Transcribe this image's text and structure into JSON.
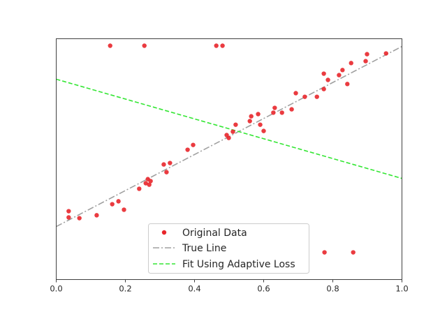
{
  "chart_data": {
    "type": "scatter",
    "title": "",
    "xlabel": "",
    "ylabel": "",
    "xlim": [
      0.0,
      1.0
    ],
    "ylim": [
      0.0,
      1.0
    ],
    "x_ticks": [
      "0.0",
      "0.2",
      "0.4",
      "0.6",
      "0.8",
      "1.0"
    ],
    "y_ticks": [],
    "grid": false,
    "legend_position": "lower center",
    "colors": {
      "points": "#e8262b",
      "true_line": "#a0a0a0",
      "fit_line": "#33e633",
      "axes": "#404040"
    },
    "series": [
      {
        "name": "Original Data",
        "kind": "scatter",
        "points": [
          [
            0.036,
            0.284
          ],
          [
            0.036,
            0.258
          ],
          [
            0.067,
            0.255
          ],
          [
            0.117,
            0.267
          ],
          [
            0.162,
            0.313
          ],
          [
            0.18,
            0.325
          ],
          [
            0.196,
            0.29
          ],
          [
            0.24,
            0.377
          ],
          [
            0.259,
            0.4
          ],
          [
            0.265,
            0.417
          ],
          [
            0.273,
            0.409
          ],
          [
            0.269,
            0.394
          ],
          [
            0.311,
            0.478
          ],
          [
            0.329,
            0.484
          ],
          [
            0.319,
            0.446
          ],
          [
            0.38,
            0.539
          ],
          [
            0.396,
            0.559
          ],
          [
            0.493,
            0.6
          ],
          [
            0.499,
            0.588
          ],
          [
            0.511,
            0.614
          ],
          [
            0.519,
            0.643
          ],
          [
            0.56,
            0.658
          ],
          [
            0.564,
            0.678
          ],
          [
            0.584,
            0.687
          ],
          [
            0.59,
            0.643
          ],
          [
            0.6,
            0.617
          ],
          [
            0.628,
            0.693
          ],
          [
            0.632,
            0.713
          ],
          [
            0.653,
            0.693
          ],
          [
            0.681,
            0.707
          ],
          [
            0.693,
            0.774
          ],
          [
            0.719,
            0.759
          ],
          [
            0.754,
            0.759
          ],
          [
            0.774,
            0.791
          ],
          [
            0.774,
            0.855
          ],
          [
            0.786,
            0.829
          ],
          [
            0.818,
            0.849
          ],
          [
            0.828,
            0.87
          ],
          [
            0.842,
            0.812
          ],
          [
            0.853,
            0.899
          ],
          [
            0.895,
            0.907
          ],
          [
            0.899,
            0.936
          ],
          [
            0.954,
            0.939
          ],
          [
            0.156,
            0.971
          ],
          [
            0.255,
            0.971
          ],
          [
            0.463,
            0.971
          ],
          [
            0.481,
            0.971
          ],
          [
            0.776,
            0.113
          ],
          [
            0.859,
            0.113
          ]
        ]
      },
      {
        "name": "True Line",
        "kind": "line",
        "style": "dashdot",
        "x": [
          0.0,
          1.0
        ],
        "y": [
          0.22,
          0.968
        ]
      },
      {
        "name": "Fit Using Adaptive Loss",
        "kind": "line",
        "style": "dashed",
        "x": [
          0.0,
          1.0
        ],
        "y": [
          0.832,
          0.42
        ]
      }
    ]
  },
  "legend": {
    "items": [
      {
        "label": "Original Data"
      },
      {
        "label": "True Line"
      },
      {
        "label": "Fit Using Adaptive Loss"
      }
    ]
  }
}
